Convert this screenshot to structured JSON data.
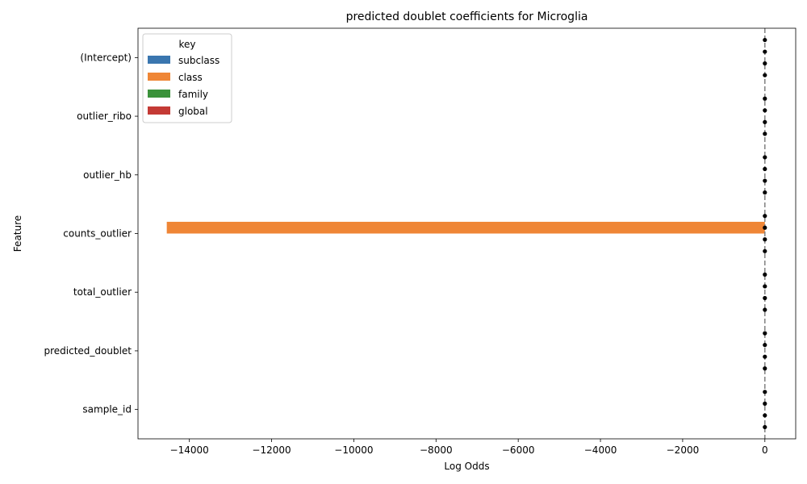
{
  "chart_data": {
    "type": "bar",
    "orientation": "horizontal",
    "title": "predicted doublet coefficients for Microglia",
    "xlabel": "Log Odds",
    "ylabel": "Feature",
    "categories": [
      "(Intercept)",
      "outlier_ribo",
      "outlier_hb",
      "counts_outlier",
      "total_outlier",
      "predicted_doublet",
      "sample_id"
    ],
    "xlim": [
      -15250,
      750
    ],
    "xticks": [
      -14000,
      -12000,
      -10000,
      -8000,
      -6000,
      -4000,
      -2000,
      0
    ],
    "reference_line": 0,
    "legend": {
      "title": "key",
      "placement": "upper-left"
    },
    "series": [
      {
        "name": "subclass",
        "color": "#3a76af",
        "values": [
          0,
          0,
          0,
          0,
          0,
          0,
          0
        ]
      },
      {
        "name": "class",
        "color": "#ef8636",
        "values": [
          0,
          0,
          0,
          -14550,
          0,
          0,
          0
        ]
      },
      {
        "name": "family",
        "color": "#3b923b",
        "values": [
          0,
          0,
          0,
          0,
          0,
          0,
          0
        ]
      },
      {
        "name": "global",
        "color": "#c43a35",
        "values": [
          0,
          0,
          0,
          0,
          0,
          0,
          0
        ]
      }
    ],
    "grid": false
  }
}
